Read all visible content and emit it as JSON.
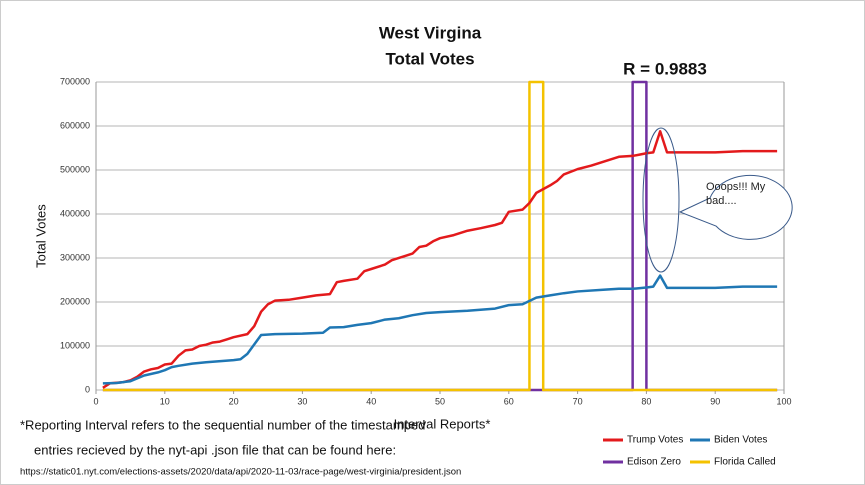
{
  "chart_data": {
    "type": "line",
    "title": "West Virgina",
    "subtitle": "Total Votes",
    "xlabel": "Interval Reports*",
    "ylabel": "Total Votes",
    "annotations": [
      "R = 0.9883",
      "Ooops!!! My bad....",
      "*Reporting Interval refers to the sequential number of the timestamped",
      "entries recieved by the nyt-api .json file that can be found here:",
      "https://static01.nyt.com/elections-assets/2020/data/api/2020-11-03/race-page/west-virginia/president.json"
    ],
    "xlim": [
      0,
      100
    ],
    "xticks": [
      0,
      10,
      20,
      30,
      40,
      50,
      60,
      70,
      80,
      90,
      100
    ],
    "ylim": [
      0,
      700000
    ],
    "yticks": [
      0,
      100000,
      200000,
      300000,
      400000,
      500000,
      600000,
      700000
    ],
    "grid": true,
    "series": [
      {
        "name": "Edison Zero",
        "color": "#7030a0",
        "x": [
          1,
          78,
          78,
          80,
          80,
          99
        ],
        "values": [
          0,
          0,
          700000,
          700000,
          0,
          0
        ]
      },
      {
        "name": "Florida Called",
        "color": "#f4c200",
        "x": [
          1,
          63,
          63,
          65,
          65,
          99
        ],
        "values": [
          0,
          0,
          700000,
          700000,
          0,
          0
        ]
      },
      {
        "name": "Trump Votes",
        "color": "#e31a1c",
        "x": [
          1,
          2,
          4,
          5,
          6,
          7,
          8,
          9,
          10,
          11,
          12,
          13,
          14,
          15,
          16,
          17,
          18,
          19,
          20,
          22,
          23,
          24,
          25,
          26,
          28,
          30,
          32,
          34,
          35,
          36,
          38,
          39,
          40,
          42,
          43,
          45,
          46,
          47,
          48,
          49,
          50,
          52,
          54,
          56,
          58,
          59,
          60,
          62,
          63,
          64,
          66,
          67,
          68,
          70,
          72,
          74,
          76,
          78,
          79,
          80,
          81,
          82,
          83,
          85,
          90,
          94,
          99
        ],
        "values": [
          5000,
          15000,
          18000,
          22000,
          30000,
          42000,
          47000,
          50000,
          58000,
          60000,
          78000,
          90000,
          92000,
          100000,
          103000,
          108000,
          110000,
          115000,
          120000,
          127000,
          145000,
          178000,
          195000,
          203000,
          205000,
          210000,
          215000,
          218000,
          245000,
          248000,
          253000,
          270000,
          275000,
          285000,
          295000,
          305000,
          310000,
          325000,
          328000,
          338000,
          345000,
          352000,
          362000,
          368000,
          375000,
          380000,
          405000,
          410000,
          425000,
          448000,
          465000,
          475000,
          490000,
          502000,
          510000,
          520000,
          530000,
          532000,
          535000,
          538000,
          540000,
          588000,
          540000,
          540000,
          540000,
          543000,
          543000
        ]
      },
      {
        "name": "Biden Votes",
        "color": "#1f77b4",
        "x": [
          1,
          3,
          5,
          7,
          9,
          10,
          11,
          12,
          14,
          16,
          20,
          21,
          22,
          24,
          26,
          30,
          33,
          34,
          36,
          38,
          40,
          42,
          44,
          46,
          48,
          50,
          54,
          58,
          60,
          62,
          64,
          66,
          68,
          70,
          74,
          76,
          78,
          80,
          81,
          82,
          83,
          85,
          90,
          94,
          99
        ],
        "values": [
          15000,
          16000,
          20000,
          33000,
          40000,
          45000,
          52000,
          55000,
          60000,
          63000,
          68000,
          70000,
          82000,
          125000,
          127000,
          128000,
          130000,
          142000,
          143000,
          148000,
          152000,
          160000,
          163000,
          170000,
          175000,
          177000,
          180000,
          185000,
          193000,
          195000,
          210000,
          215000,
          220000,
          224000,
          228000,
          230000,
          230000,
          233000,
          235000,
          260000,
          232000,
          232000,
          232000,
          235000,
          235000
        ]
      }
    ]
  }
}
